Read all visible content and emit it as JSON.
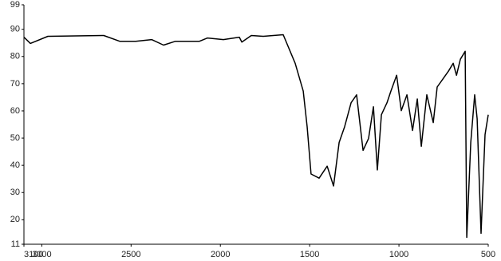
{
  "chart_data": {
    "type": "line",
    "x": [
      3100,
      3064,
      2966,
      2653,
      2564,
      2474,
      2385,
      2318,
      2251,
      2117,
      2072,
      1983,
      1894,
      1880,
      1827,
      1760,
      1648,
      1581,
      1536,
      1514,
      1492,
      1447,
      1402,
      1366,
      1335,
      1304,
      1268,
      1237,
      1201,
      1170,
      1143,
      1121,
      1098,
      1067,
      1045,
      1013,
      987,
      955,
      924,
      897,
      875,
      844,
      808,
      786,
      754,
      723,
      696,
      678,
      656,
      629,
      620,
      598,
      576,
      562,
      540,
      518,
      500
    ],
    "series": [
      {
        "color": "#000000",
        "values": [
          87.1,
          84.8,
          87.4,
          87.7,
          85.6,
          85.6,
          86.2,
          84.2,
          85.6,
          85.6,
          86.8,
          86.2,
          87.1,
          85.3,
          87.7,
          87.4,
          88,
          77.5,
          67.3,
          54.2,
          36.8,
          35.3,
          39.7,
          32.4,
          48.4,
          54.2,
          63,
          65.9,
          45.5,
          49.9,
          61.5,
          38.3,
          58.6,
          63,
          67.3,
          73.1,
          60.1,
          65.9,
          52.8,
          64.4,
          47,
          65.9,
          55.7,
          68.8,
          71.7,
          74.6,
          77.5,
          73.1,
          79,
          81.9,
          13.5,
          48.4,
          65.9,
          57.1,
          15,
          51.3,
          58.6
        ]
      }
    ],
    "xlim": [
      3100,
      500
    ],
    "xticks": [
      3100,
      3000,
      2500,
      2000,
      1500,
      1000,
      500
    ],
    "ylim": [
      11,
      99
    ],
    "yticks": [
      11,
      20,
      30,
      40,
      50,
      60,
      70,
      80,
      90,
      99
    ]
  }
}
